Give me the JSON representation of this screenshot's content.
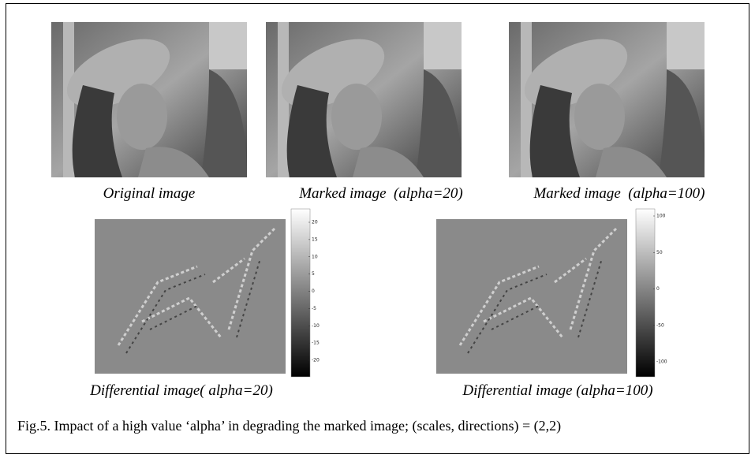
{
  "figure": {
    "images": [
      {
        "caption": "Original image"
      },
      {
        "caption": "Marked image  (alpha=20)"
      },
      {
        "caption": "Marked image  (alpha=100)"
      }
    ],
    "differentials": [
      {
        "caption": "Differential image( alpha=20)",
        "colorbar_ticks": [
          20,
          15,
          10,
          5,
          0,
          -5,
          -10,
          -15,
          -20
        ]
      },
      {
        "caption": "Differential image (alpha=100)",
        "colorbar_ticks": [
          100,
          50,
          0,
          -50,
          -100
        ]
      }
    ],
    "caption": "Fig.5. Impact of a high value ‘alpha’ in degrading the marked image; (scales, directions) = (2,2)"
  }
}
